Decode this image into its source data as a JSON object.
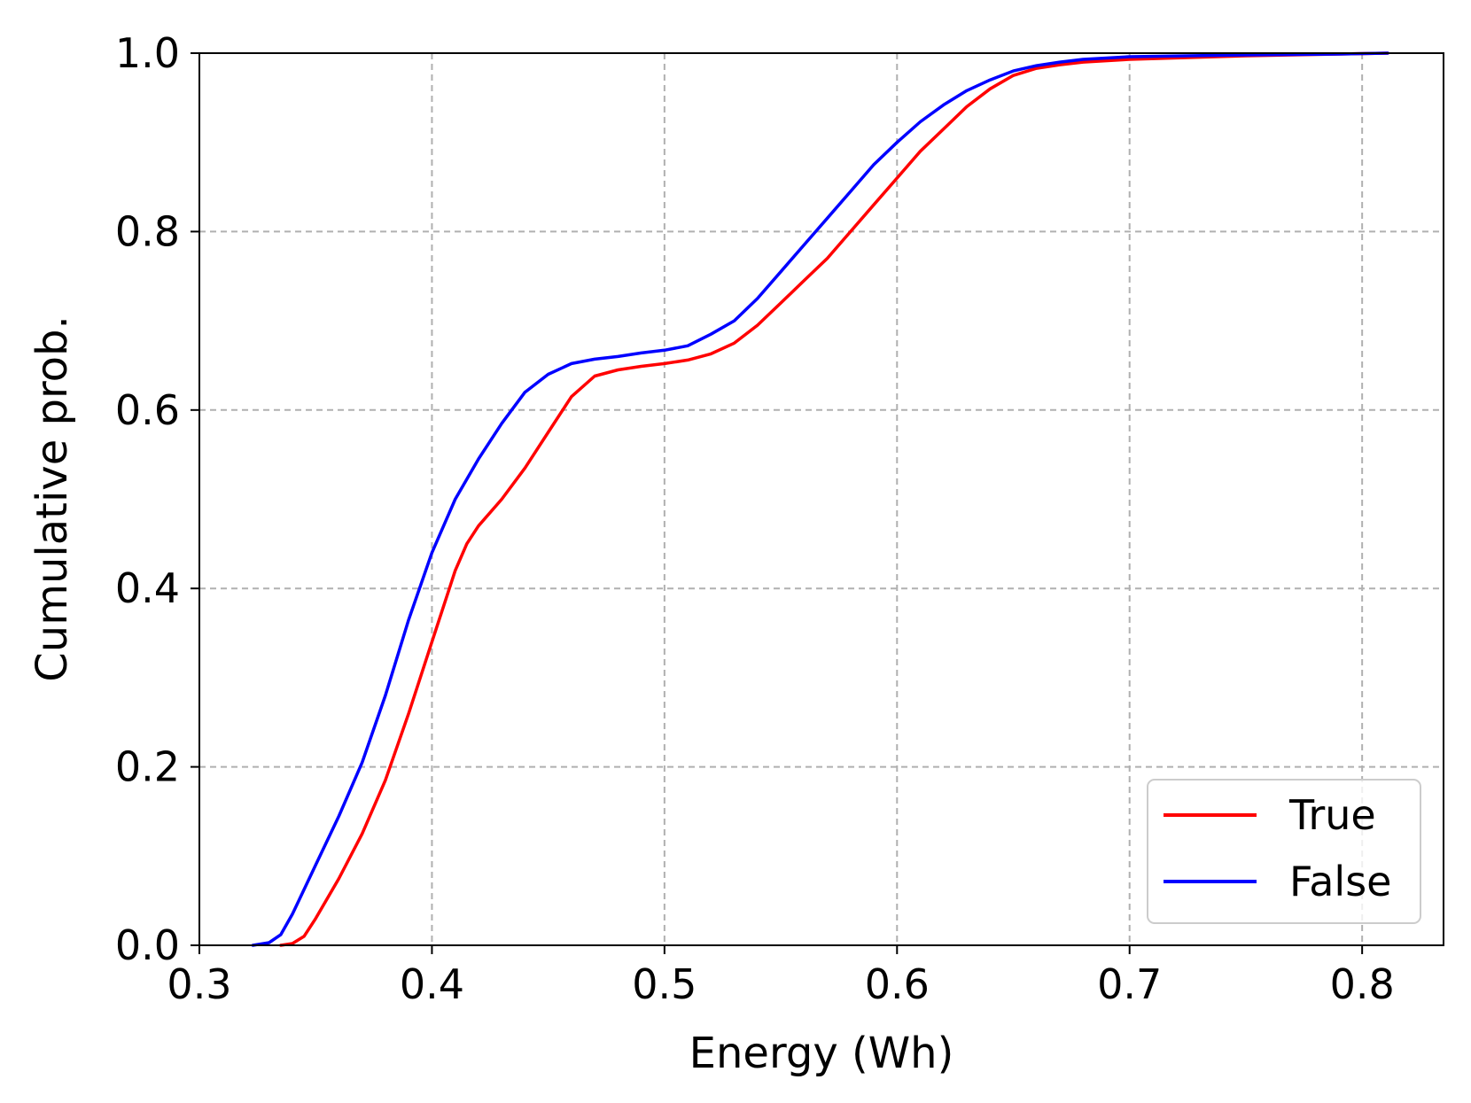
{
  "chart_data": {
    "type": "line",
    "title": "",
    "xlabel": "Energy (Wh)",
    "ylabel": "Cumulative prob.",
    "xlim": [
      0.3,
      0.835
    ],
    "ylim": [
      0.0,
      1.0
    ],
    "xticks": [
      0.3,
      0.4,
      0.5,
      0.6,
      0.7,
      0.8
    ],
    "xtick_labels": [
      "0.3",
      "0.4",
      "0.5",
      "0.6",
      "0.7",
      "0.8"
    ],
    "yticks": [
      0.0,
      0.2,
      0.4,
      0.6,
      0.8,
      1.0
    ],
    "ytick_labels": [
      "0.0",
      "0.2",
      "0.4",
      "0.6",
      "0.8",
      "1.0"
    ],
    "grid": true,
    "legend_position": "lower-right",
    "series": [
      {
        "name": "True",
        "color": "#ff0000",
        "x": [
          0.335,
          0.34,
          0.345,
          0.35,
          0.36,
          0.37,
          0.38,
          0.39,
          0.4,
          0.41,
          0.415,
          0.42,
          0.43,
          0.44,
          0.45,
          0.46,
          0.47,
          0.48,
          0.49,
          0.5,
          0.51,
          0.52,
          0.53,
          0.54,
          0.55,
          0.56,
          0.57,
          0.58,
          0.59,
          0.6,
          0.61,
          0.62,
          0.63,
          0.64,
          0.65,
          0.66,
          0.67,
          0.68,
          0.7,
          0.75,
          0.79,
          0.811
        ],
        "y": [
          0.0,
          0.002,
          0.01,
          0.03,
          0.075,
          0.125,
          0.185,
          0.26,
          0.34,
          0.42,
          0.45,
          0.47,
          0.5,
          0.535,
          0.575,
          0.615,
          0.638,
          0.645,
          0.649,
          0.652,
          0.656,
          0.663,
          0.675,
          0.695,
          0.72,
          0.745,
          0.77,
          0.8,
          0.83,
          0.86,
          0.89,
          0.915,
          0.94,
          0.96,
          0.975,
          0.983,
          0.987,
          0.99,
          0.993,
          0.997,
          0.999,
          1.0
        ]
      },
      {
        "name": "False",
        "color": "#0000ff",
        "x": [
          0.323,
          0.33,
          0.335,
          0.34,
          0.35,
          0.36,
          0.37,
          0.38,
          0.39,
          0.4,
          0.41,
          0.42,
          0.43,
          0.44,
          0.45,
          0.46,
          0.47,
          0.48,
          0.49,
          0.5,
          0.51,
          0.52,
          0.53,
          0.54,
          0.55,
          0.56,
          0.57,
          0.58,
          0.59,
          0.6,
          0.61,
          0.62,
          0.63,
          0.64,
          0.65,
          0.66,
          0.67,
          0.68,
          0.7,
          0.75,
          0.79,
          0.811
        ],
        "y": [
          0.0,
          0.003,
          0.012,
          0.035,
          0.09,
          0.145,
          0.205,
          0.28,
          0.365,
          0.44,
          0.5,
          0.545,
          0.585,
          0.62,
          0.64,
          0.652,
          0.657,
          0.66,
          0.664,
          0.667,
          0.672,
          0.685,
          0.7,
          0.725,
          0.755,
          0.785,
          0.815,
          0.845,
          0.875,
          0.9,
          0.923,
          0.942,
          0.958,
          0.97,
          0.98,
          0.986,
          0.99,
          0.993,
          0.996,
          0.998,
          0.999,
          1.0
        ]
      }
    ]
  }
}
